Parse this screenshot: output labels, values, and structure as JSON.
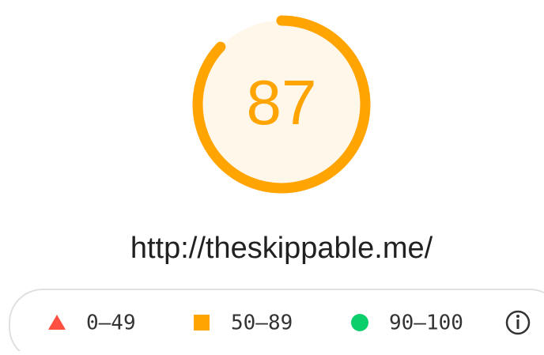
{
  "gauge": {
    "score": 87,
    "max": 100
  },
  "url": "http://theskippable.me/",
  "legend": [
    {
      "shape": "triangle",
      "color": "#ff4e42",
      "label": "0–49"
    },
    {
      "shape": "square",
      "color": "#ffa400",
      "label": "50–89"
    },
    {
      "shape": "circle",
      "color": "#0cce6b",
      "label": "90–100"
    }
  ]
}
